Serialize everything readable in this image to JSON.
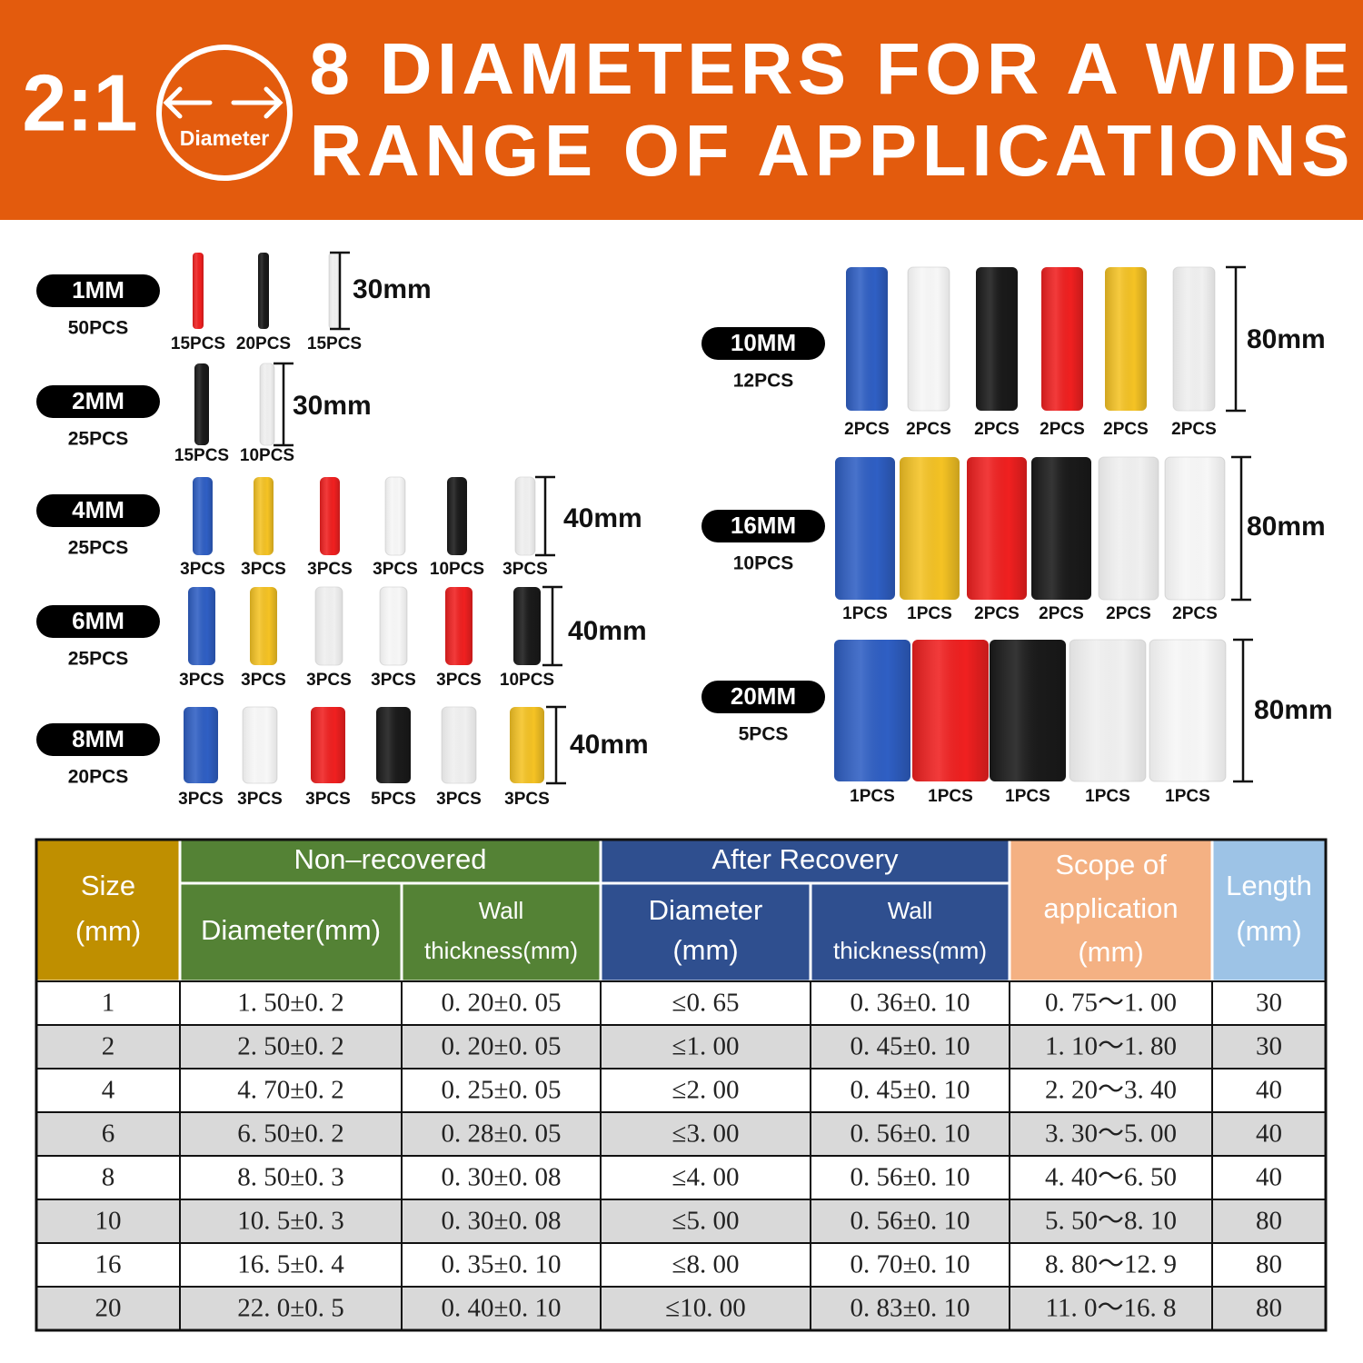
{
  "header": {
    "ratio": "2:1",
    "icon_label": "Diameter",
    "title_line1": "8 DIAMETERS FOR A WIDE",
    "title_line2": "RANGE OF APPLICATIONS"
  },
  "groups": [
    {
      "size": "1MM",
      "total": "50PCS",
      "length": "30mm",
      "tubes": [
        {
          "color": "#f02020",
          "label": "15PCS"
        },
        {
          "color": "#1a1a1a",
          "label": "20PCS"
        },
        {
          "color": "#ececec",
          "label": "15PCS"
        }
      ]
    },
    {
      "size": "2MM",
      "total": "25PCS",
      "length": "30mm",
      "tubes": [
        {
          "color": "#1a1a1a",
          "label": "15PCS"
        },
        {
          "color": "#ececec",
          "label": "10PCS"
        }
      ]
    },
    {
      "size": "4MM",
      "total": "25PCS",
      "length": "40mm",
      "tubes": [
        {
          "color": "#2f5fc4",
          "label": "3PCS"
        },
        {
          "color": "#f5c324",
          "label": "3PCS"
        },
        {
          "color": "#f02020",
          "label": "3PCS"
        },
        {
          "color": "#f7f7f7",
          "label": "3PCS"
        },
        {
          "color": "#1a1a1a",
          "label": "10PCS"
        },
        {
          "color": "#ececec",
          "label": "3PCS"
        }
      ]
    },
    {
      "size": "6MM",
      "total": "25PCS",
      "length": "40mm",
      "tubes": [
        {
          "color": "#2f5fc4",
          "label": "3PCS"
        },
        {
          "color": "#f5c324",
          "label": "3PCS"
        },
        {
          "color": "#ececec",
          "label": "3PCS"
        },
        {
          "color": "#f7f7f7",
          "label": "3PCS"
        },
        {
          "color": "#f02020",
          "label": "3PCS"
        },
        {
          "color": "#1a1a1a",
          "label": "10PCS"
        }
      ]
    },
    {
      "size": "8MM",
      "total": "20PCS",
      "length": "40mm",
      "tubes": [
        {
          "color": "#2f5fc4",
          "label": "3PCS"
        },
        {
          "color": "#f7f7f7",
          "label": "3PCS"
        },
        {
          "color": "#f02020",
          "label": "3PCS"
        },
        {
          "color": "#1a1a1a",
          "label": "5PCS"
        },
        {
          "color": "#ececec",
          "label": "3PCS"
        },
        {
          "color": "#f5c324",
          "label": "3PCS"
        }
      ]
    },
    {
      "size": "10MM",
      "total": "12PCS",
      "length": "80mm",
      "tubes": [
        {
          "color": "#2f5fc4",
          "label": "2PCS"
        },
        {
          "color": "#f7f7f7",
          "label": "2PCS"
        },
        {
          "color": "#1a1a1a",
          "label": "2PCS"
        },
        {
          "color": "#f02020",
          "label": "2PCS"
        },
        {
          "color": "#f5c324",
          "label": "2PCS"
        },
        {
          "color": "#ececec",
          "label": "2PCS"
        }
      ]
    },
    {
      "size": "16MM",
      "total": "10PCS",
      "length": "80mm",
      "tubes": [
        {
          "color": "#2f5fc4",
          "label": "1PCS"
        },
        {
          "color": "#f5c324",
          "label": "1PCS"
        },
        {
          "color": "#f02020",
          "label": "2PCS"
        },
        {
          "color": "#1a1a1a",
          "label": "2PCS"
        },
        {
          "color": "#ececec",
          "label": "2PCS"
        },
        {
          "color": "#f7f7f7",
          "label": "2PCS"
        }
      ]
    },
    {
      "size": "20MM",
      "total": "5PCS",
      "length": "80mm",
      "tubes": [
        {
          "color": "#2f5fc4",
          "label": "1PCS"
        },
        {
          "color": "#f02020",
          "label": "1PCS"
        },
        {
          "color": "#1a1a1a",
          "label": "1PCS"
        },
        {
          "color": "#ececec",
          "label": "1PCS"
        },
        {
          "color": "#f7f7f7",
          "label": "1PCS"
        }
      ]
    }
  ],
  "table": {
    "group_headers": [
      {
        "lines": [
          "Size",
          "(mm)"
        ],
        "color": "#bf8f00"
      },
      {
        "lines": [
          "Non–recovered"
        ],
        "color": "#548235"
      },
      {
        "lines": [
          "After Recovery"
        ],
        "color": "#2f4f8f"
      },
      {
        "lines": [
          "Scope of",
          "application",
          "(mm)"
        ],
        "color": "#f4b183"
      },
      {
        "lines": [
          "Length",
          "(mm)"
        ],
        "color": "#9dc3e6"
      }
    ],
    "sub_headers": [
      {
        "lines": [
          "Diameter(mm)"
        ],
        "color": "#548235"
      },
      {
        "lines": [
          "Wall",
          "thickness(mm)"
        ],
        "color": "#548235"
      },
      {
        "lines": [
          "Diameter",
          "(mm)"
        ],
        "color": "#2f4f8f"
      },
      {
        "lines": [
          "Wall",
          "thickness(mm)"
        ],
        "color": "#2f4f8f"
      }
    ],
    "rows": [
      [
        "1",
        "1. 50±0. 2",
        "0. 20±0. 05",
        "≤0. 65",
        "0. 36±0. 10",
        "0. 75～1. 00",
        "30"
      ],
      [
        "2",
        "2. 50±0. 2",
        "0. 20±0. 05",
        "≤1. 00",
        "0. 45±0. 10",
        "1. 10～1. 80",
        "30"
      ],
      [
        "4",
        "4. 70±0. 2",
        "0. 25±0. 05",
        "≤2. 00",
        "0. 45±0. 10",
        "2. 20～3. 40",
        "40"
      ],
      [
        "6",
        "6. 50±0. 2",
        "0. 28±0. 05",
        "≤3. 00",
        "0. 56±0. 10",
        "3. 30～5. 00",
        "40"
      ],
      [
        "8",
        "8. 50±0. 3",
        "0. 30±0. 08",
        "≤4. 00",
        "0. 56±0. 10",
        "4. 40～6. 50",
        "40"
      ],
      [
        "10",
        "10. 5±0. 3",
        "0. 30±0. 08",
        "≤5. 00",
        "0. 56±0. 10",
        "5. 50～8. 10",
        "80"
      ],
      [
        "16",
        "16. 5±0. 4",
        "0. 35±0. 10",
        "≤8. 00",
        "0. 70±0. 10",
        "8. 80～12. 9",
        "80"
      ],
      [
        "20",
        "22. 0±0. 5",
        "0. 40±0. 10",
        "≤10. 00",
        "0. 83±0. 10",
        "11. 0～16. 8",
        "80"
      ]
    ]
  }
}
